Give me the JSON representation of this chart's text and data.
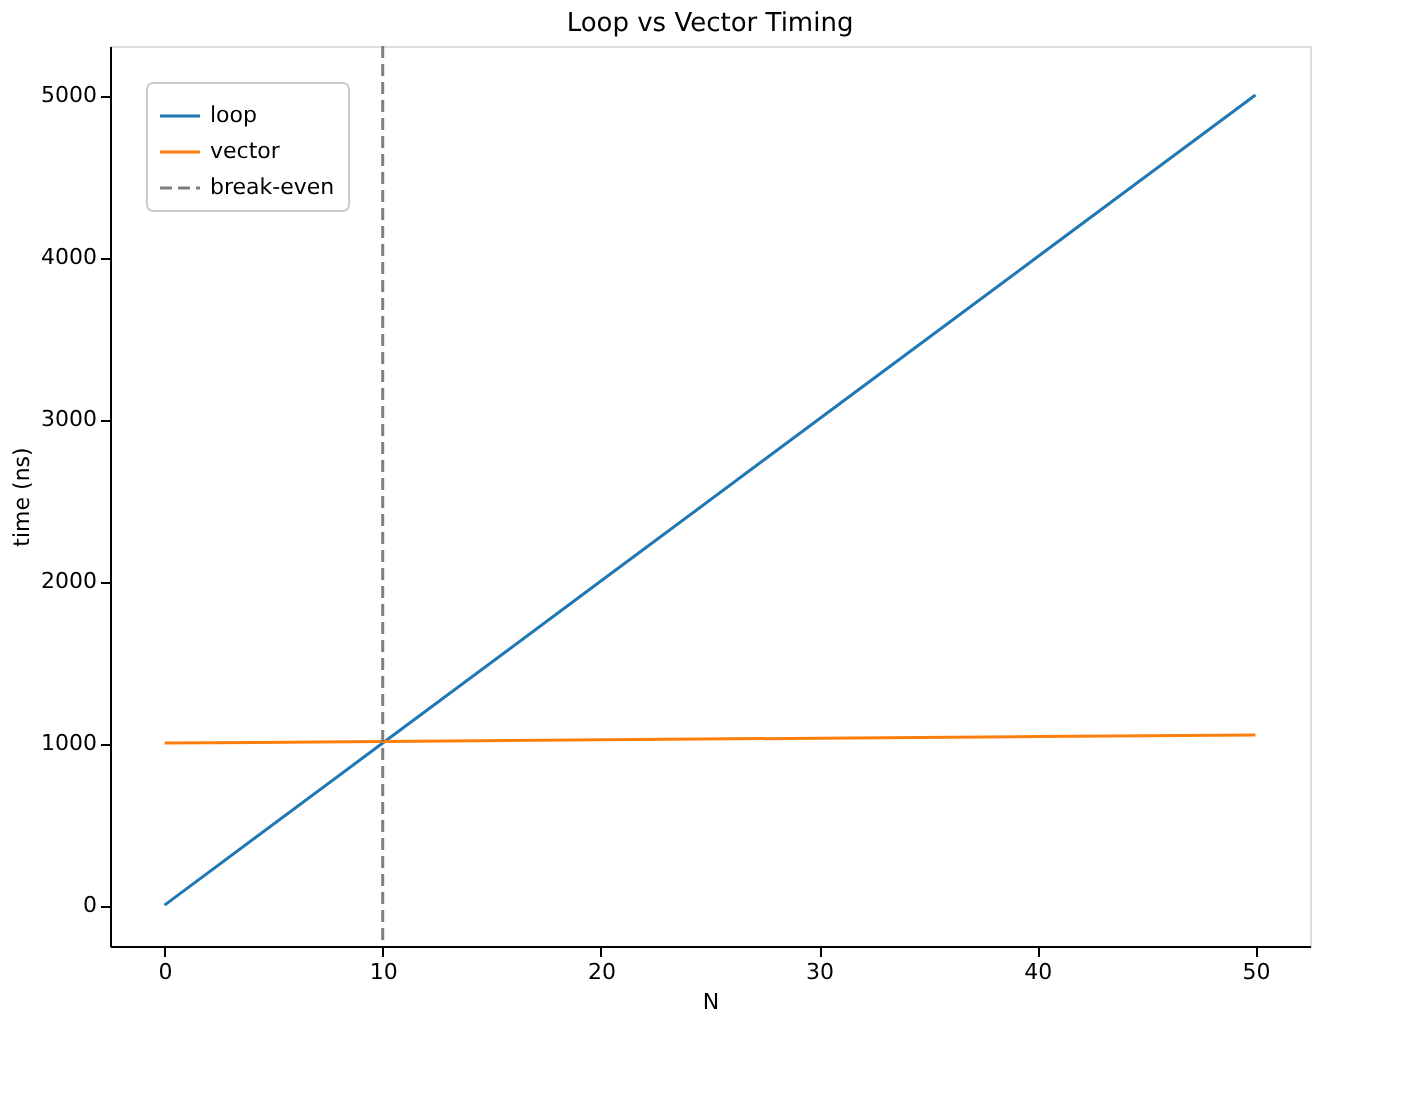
{
  "chart_data": {
    "type": "line",
    "title": "Loop vs Vector Timing",
    "xlabel": "N",
    "ylabel": "time (ns)",
    "x": [
      0,
      10,
      20,
      30,
      40,
      50
    ],
    "series": [
      {
        "name": "loop",
        "color": "#1f77b4",
        "values": [
          0,
          1000,
          2000,
          3000,
          4000,
          5000
        ]
      },
      {
        "name": "vector",
        "color": "#ff7f0e",
        "values": [
          1000,
          1010,
          1020,
          1030,
          1040,
          1050
        ]
      }
    ],
    "ref_lines": [
      {
        "axis": "x",
        "value": 10,
        "label": "break-even",
        "color": "#7f7f7f",
        "line_style": "dashed"
      }
    ],
    "xlim": [
      -2.5,
      52.5
    ],
    "ylim": [
      -252.5,
      5302.5
    ],
    "xticks": [
      0,
      10,
      20,
      30,
      40,
      50
    ],
    "yticks": [
      0,
      1000,
      2000,
      3000,
      4000,
      5000
    ],
    "grid": false,
    "legend": "top left",
    "line_style": "solid",
    "marker": "none"
  }
}
